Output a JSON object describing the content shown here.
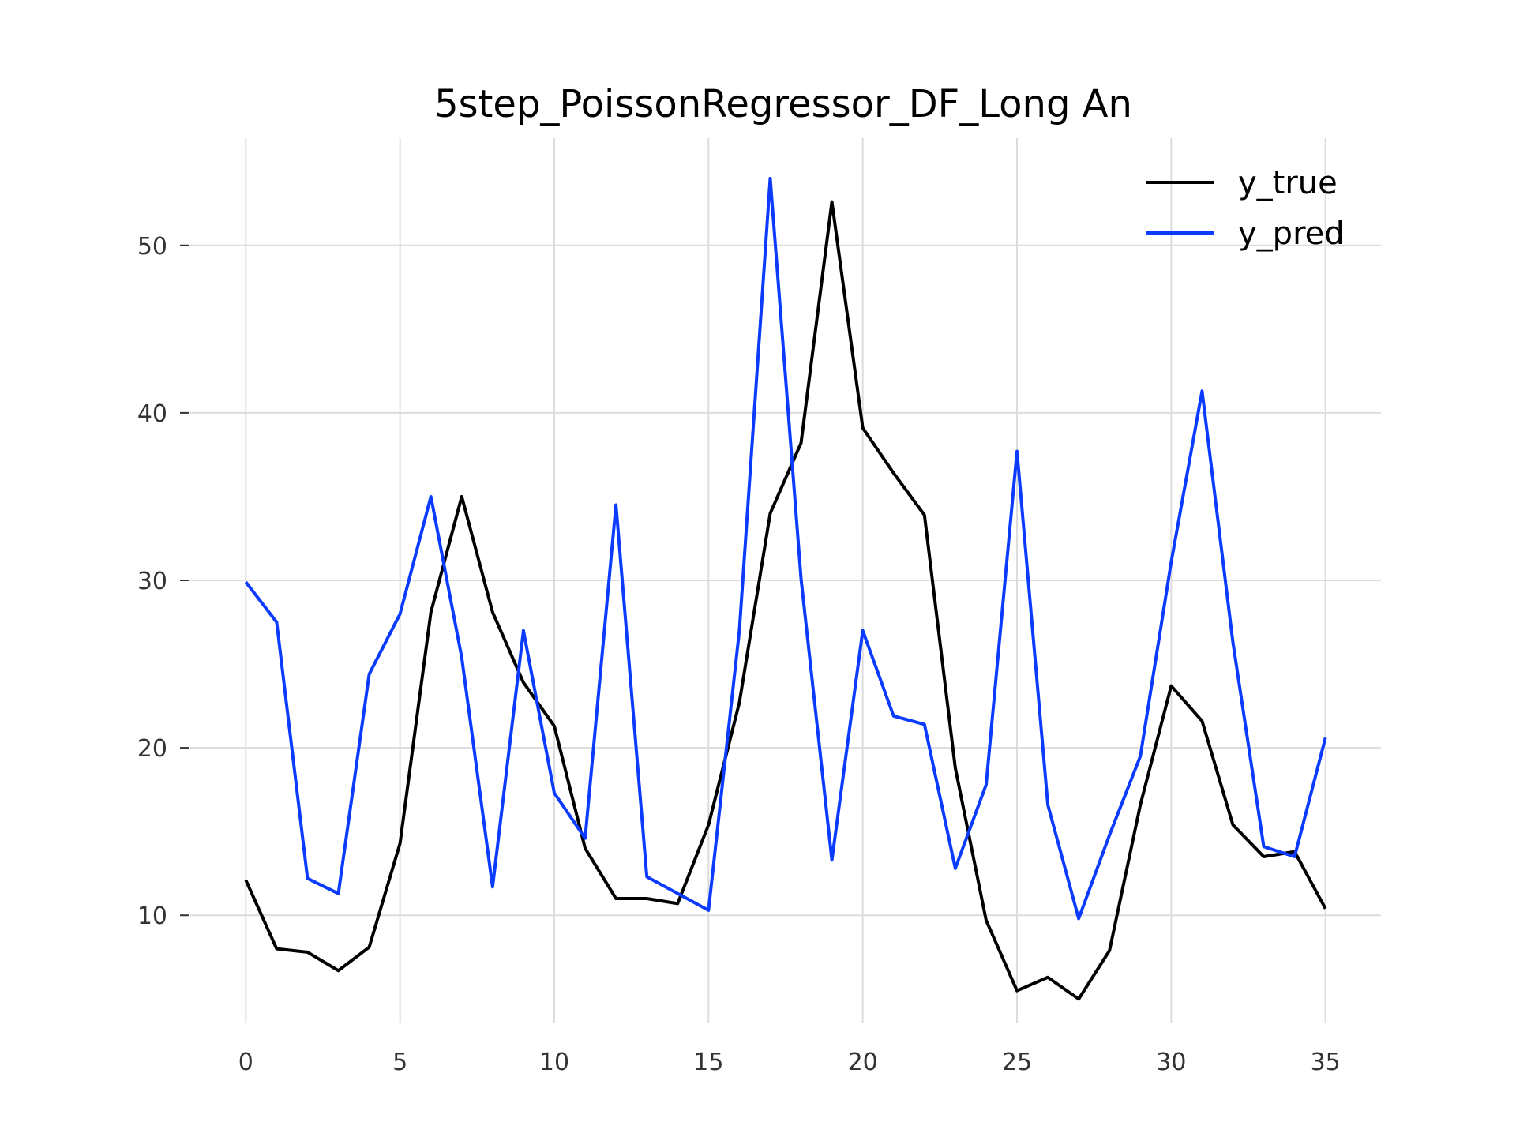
{
  "chart_data": {
    "type": "line",
    "title": "5step_PoissonRegressor_DF_Long An",
    "xlabel": "",
    "ylabel": "",
    "xlim": [
      -1.8,
      36.8
    ],
    "ylim": [
      3.6,
      56.4
    ],
    "x": [
      0,
      1,
      2,
      3,
      4,
      5,
      6,
      7,
      8,
      9,
      10,
      11,
      12,
      13,
      14,
      15,
      16,
      17,
      18,
      19,
      20,
      21,
      22,
      23,
      24,
      25,
      26,
      27,
      28,
      29,
      30,
      31,
      32,
      33,
      34,
      35
    ],
    "x_ticks": [
      0,
      5,
      10,
      15,
      20,
      25,
      30,
      35
    ],
    "y_ticks": [
      10,
      20,
      30,
      40,
      50
    ],
    "grid": true,
    "legend_position": "top-right",
    "series": [
      {
        "name": "y_true",
        "color": "#000000",
        "values": [
          12.1,
          8.0,
          7.8,
          6.7,
          8.1,
          14.3,
          28.1,
          35.0,
          28.1,
          23.9,
          21.3,
          14.0,
          11.0,
          11.0,
          10.7,
          15.4,
          22.7,
          34.0,
          38.2,
          52.6,
          39.1,
          36.4,
          33.9,
          18.8,
          9.7,
          5.5,
          6.3,
          5.0,
          7.9,
          16.6,
          23.7,
          21.6,
          15.4,
          13.5,
          13.8,
          10.4
        ]
      },
      {
        "name": "y_pred",
        "color": "#0a3bff",
        "values": [
          29.9,
          27.5,
          12.2,
          11.3,
          24.4,
          28.0,
          35.0,
          25.4,
          11.7,
          27.0,
          17.3,
          14.6,
          34.5,
          12.3,
          11.3,
          10.3,
          27.0,
          54.0,
          30.1,
          13.3,
          27.0,
          21.9,
          21.4,
          12.8,
          17.8,
          37.7,
          16.6,
          9.8,
          14.8,
          19.5,
          31.1,
          41.3,
          26.3,
          14.1,
          13.5,
          20.6
        ]
      }
    ]
  }
}
